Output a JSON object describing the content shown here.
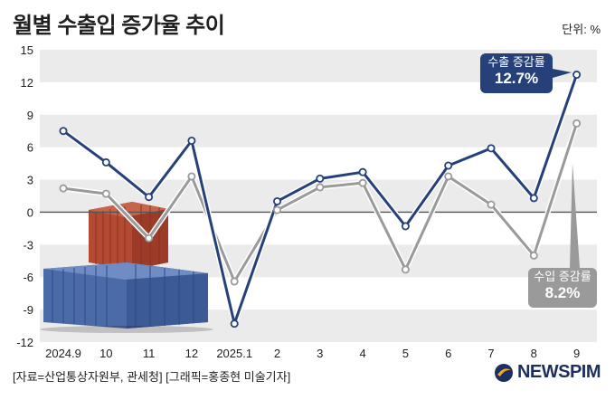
{
  "title": "월별 수출입 증가율 추이",
  "unit": "단위: %",
  "source": "[자료=산업통상자원부, 관세청] [그래픽=홍종현 미술기자]",
  "brand": "NEWSPIM",
  "callouts": {
    "export_label": "수출 증감률",
    "export_value": "12.7%",
    "import_label": "수입 증감률",
    "import_value": "8.2%"
  },
  "colors": {
    "export": "#26417a",
    "import": "#9a9a9a",
    "band": "#ebebeb",
    "zero_line": "#555555"
  },
  "chart_data": {
    "type": "line",
    "categories": [
      "2024.9",
      "10",
      "11",
      "12",
      "2025.1",
      "2",
      "3",
      "4",
      "5",
      "6",
      "7",
      "8",
      "9"
    ],
    "series": [
      {
        "name": "수출 증감률",
        "values": [
          7.5,
          4.6,
          1.4,
          6.6,
          -10.3,
          1.0,
          3.1,
          3.7,
          -1.3,
          4.3,
          5.9,
          1.3,
          12.7
        ]
      },
      {
        "name": "수입 증감률",
        "values": [
          2.2,
          1.7,
          -2.4,
          3.3,
          -6.4,
          0.2,
          2.3,
          2.7,
          -5.3,
          3.3,
          0.7,
          -4.0,
          8.2
        ]
      }
    ],
    "yticks": [
      15,
      12,
      9,
      6,
      3,
      0,
      -3,
      -6,
      -9,
      -12
    ],
    "ylim": [
      -12,
      15
    ],
    "grid": "alternating horizontal bands",
    "decoration": "shipping containers image at lower left"
  }
}
